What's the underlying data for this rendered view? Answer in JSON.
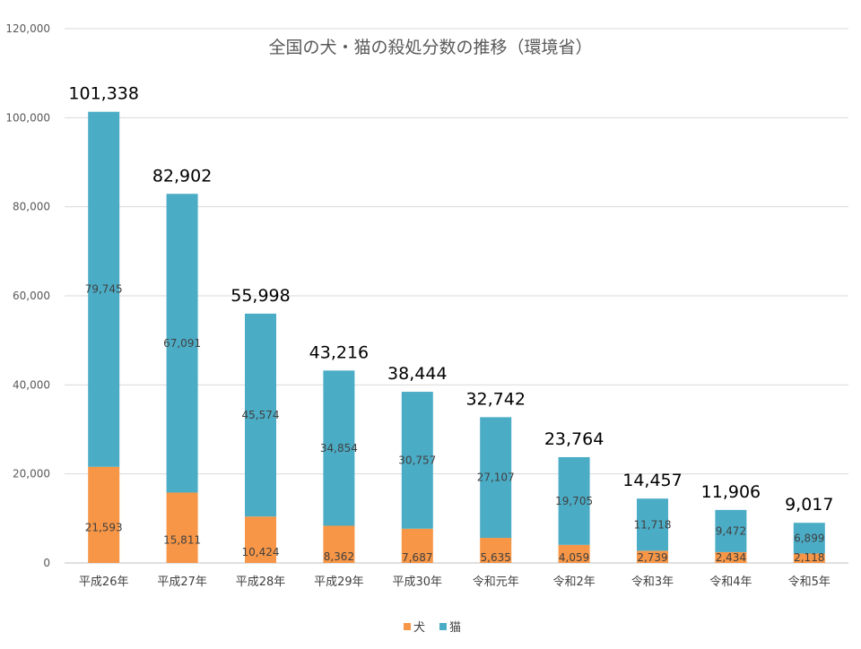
{
  "chart_data": {
    "type": "bar",
    "stacked": true,
    "title": "全国の犬・猫の殺処分数の推移（環境省）",
    "categories": [
      "平成26年",
      "平成27年",
      "平成28年",
      "平成29年",
      "平成30年",
      "令和元年",
      "令和2年",
      "令和3年",
      "令和4年",
      "令和5年"
    ],
    "series": [
      {
        "name": "犬",
        "color": "#F79646",
        "values": [
          21593,
          15811,
          10424,
          8362,
          7687,
          5635,
          4059,
          2739,
          2434,
          2118
        ],
        "labels": [
          "21,593",
          "15,811",
          "10,424",
          "8,362",
          "7,687",
          "5,635",
          "4,059",
          "2,739",
          "2,434",
          "2,118"
        ]
      },
      {
        "name": "猫",
        "color": "#4BACC6",
        "values": [
          79745,
          67091,
          45574,
          34854,
          30757,
          27107,
          19705,
          11718,
          9472,
          6899
        ],
        "labels": [
          "79,745",
          "67,091",
          "45,574",
          "34,854",
          "30,757",
          "27,107",
          "19,705",
          "11,718",
          "9,472",
          "6,899"
        ]
      }
    ],
    "totals": [
      101338,
      82902,
      55998,
      43216,
      38444,
      32742,
      23764,
      14457,
      11906,
      9017
    ],
    "total_labels": [
      "101,338",
      "82,902",
      "55,998",
      "43,216",
      "38,444",
      "32,742",
      "23,764",
      "14,457",
      "11,906",
      "9,017"
    ],
    "ylim": [
      0,
      120000
    ],
    "yticks": [
      0,
      20000,
      40000,
      60000,
      80000,
      100000,
      120000
    ],
    "ytick_labels": [
      "0",
      "20,000",
      "40,000",
      "60,000",
      "80,000",
      "100,000",
      "120,000"
    ],
    "grid": true,
    "legend_position": "bottom",
    "colors": {
      "grid": "#D9D9D9",
      "axis": "#BFBFBF"
    }
  }
}
